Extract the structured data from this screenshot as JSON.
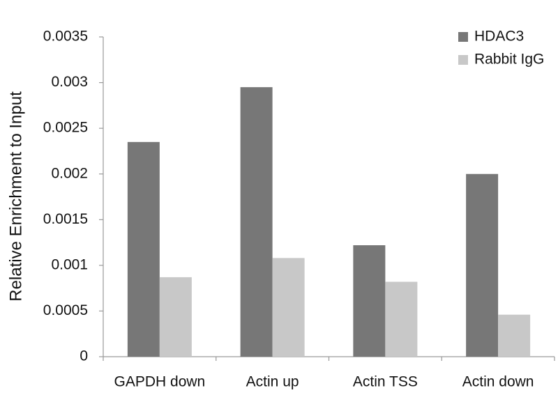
{
  "chart_data": {
    "type": "bar",
    "y_label": "Relative Enrichment to Input",
    "categories": [
      "GAPDH down",
      "Actin up",
      "Actin TSS",
      "Actin down"
    ],
    "series": [
      {
        "name": "HDAC3",
        "color": "#777777",
        "values": [
          0.00235,
          0.00295,
          0.00122,
          0.002
        ]
      },
      {
        "name": "Rabbit IgG",
        "color": "#c8c8c8",
        "values": [
          0.00087,
          0.00108,
          0.00082,
          0.00046
        ]
      }
    ],
    "ylim": [
      0,
      0.0035
    ],
    "yticks": [
      0,
      0.0005,
      0.001,
      0.0015,
      0.002,
      0.0025,
      0.003,
      0.0035
    ],
    "grid": false,
    "legend": "top-right"
  }
}
